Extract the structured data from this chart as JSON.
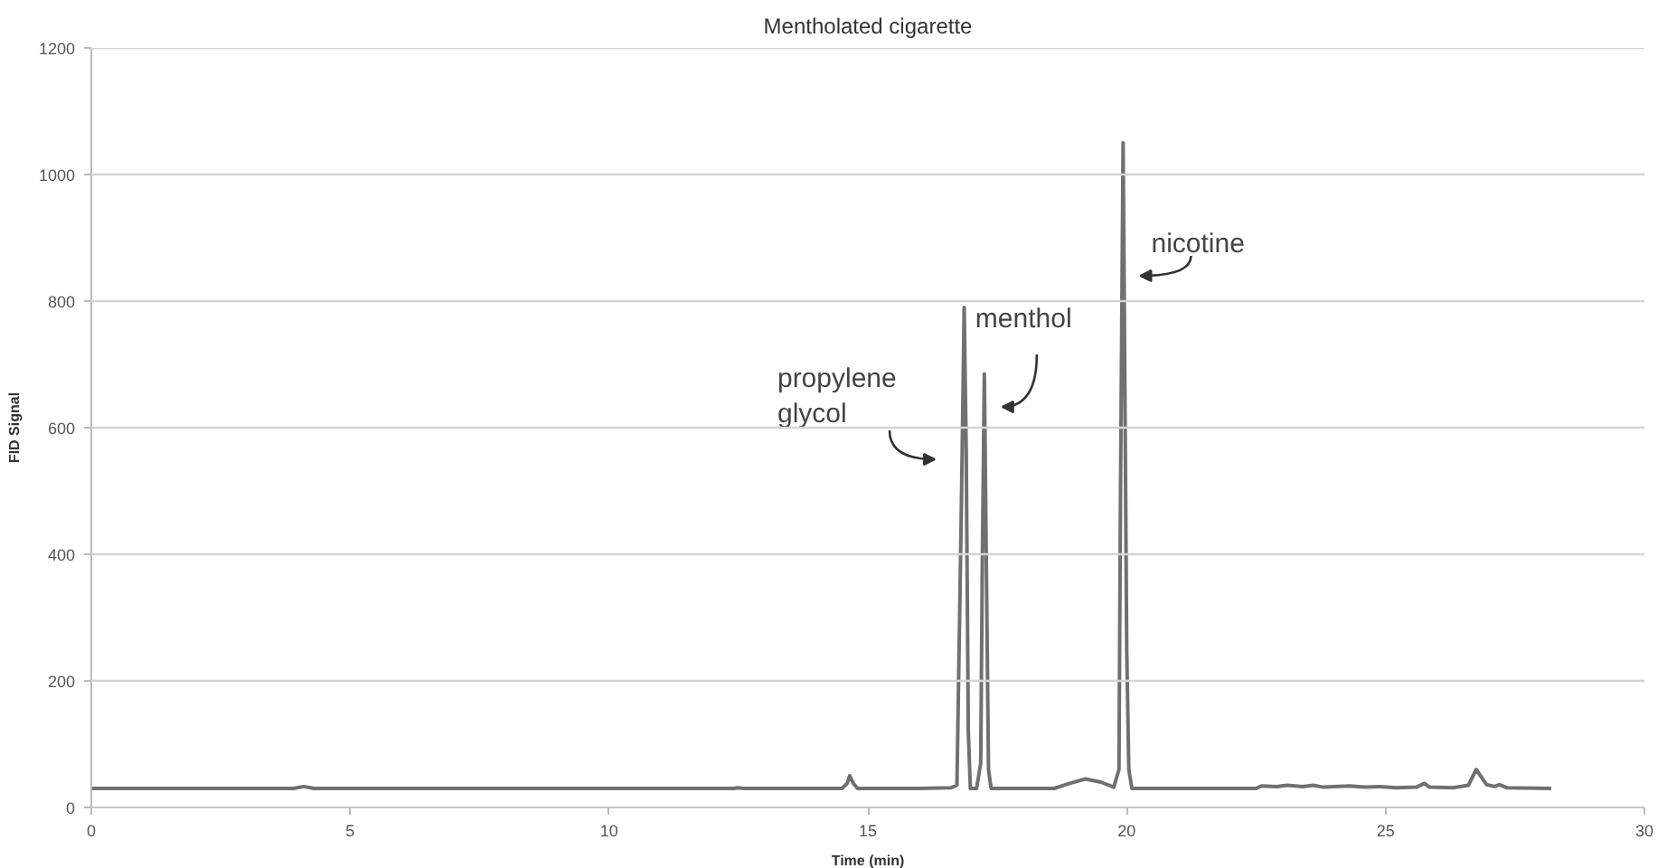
{
  "chart_data": {
    "type": "line",
    "title": "Mentholated cigarette",
    "xlabel": "Time (min)",
    "ylabel": "FID Signal",
    "x": [
      0,
      2,
      3.9,
      4.1,
      4.3,
      8,
      12.4,
      12.5,
      12.6,
      14.5,
      14.6,
      14.65,
      14.72,
      14.8,
      16.0,
      16.6,
      16.72,
      16.78,
      16.82,
      16.86,
      16.9,
      16.94,
      16.98,
      17.1,
      17.18,
      17.21,
      17.25,
      17.29,
      17.33,
      17.38,
      18.6,
      18.9,
      19.2,
      19.5,
      19.75,
      19.85,
      19.88,
      19.93,
      19.97,
      20.0,
      20.04,
      20.1,
      22.5,
      22.6,
      22.9,
      23.1,
      23.4,
      23.6,
      23.8,
      24.0,
      24.3,
      24.6,
      24.9,
      25.2,
      25.6,
      25.75,
      25.85,
      26.3,
      26.6,
      26.75,
      26.85,
      26.95,
      27.1,
      27.2,
      27.35,
      28.2
    ],
    "series": [
      {
        "color": "#707070",
        "values": [
          30,
          30,
          30,
          33,
          30,
          30,
          30,
          31,
          30,
          30,
          38,
          50,
          38,
          30,
          30,
          31,
          35,
          340,
          550,
          790,
          560,
          120,
          30,
          30,
          70,
          380,
          685,
          370,
          60,
          30,
          30,
          38,
          45,
          40,
          32,
          60,
          500,
          1050,
          600,
          250,
          60,
          30,
          30,
          34,
          33,
          35,
          33,
          35,
          32,
          33,
          34,
          32,
          33,
          31,
          32,
          38,
          32,
          31,
          35,
          60,
          48,
          36,
          33,
          36,
          31,
          30
        ]
      }
    ],
    "xlim": [
      0,
      30
    ],
    "ylim": [
      0,
      1200
    ],
    "xticks": [
      0,
      5,
      10,
      15,
      20,
      25,
      30
    ],
    "yticks": [
      0,
      200,
      400,
      600,
      800,
      1000,
      1200
    ],
    "grid": "y",
    "annotations": [
      {
        "text": "propylene\nglycol",
        "x": 16.85,
        "y": 550
      },
      {
        "text": "menthol",
        "x": 17.25,
        "y": 630
      },
      {
        "text": "nicotine",
        "x": 19.95,
        "y": 840
      }
    ]
  }
}
